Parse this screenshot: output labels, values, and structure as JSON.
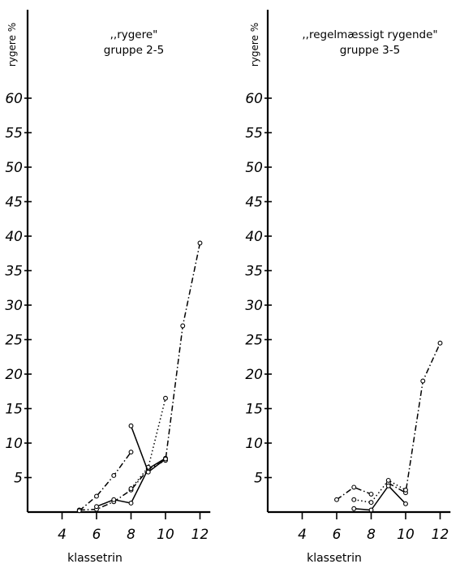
{
  "chart_data": [
    {
      "type": "line",
      "title": ",,rygere\"",
      "subtitle": "gruppe 2-5",
      "ylabel": "rygere %",
      "xlabel": "klassetrin",
      "xlim": [
        2,
        12.6
      ],
      "ylim": [
        0,
        72
      ],
      "xticks": [
        4,
        6,
        8,
        10,
        12
      ],
      "yticks": [
        5,
        10,
        15,
        20,
        25,
        30,
        35,
        40,
        45,
        50,
        55,
        60
      ],
      "grid": false,
      "series": [
        {
          "style": "dash-dot",
          "x": [
            5,
            6,
            7,
            8,
            9,
            10,
            11,
            12
          ],
          "y": [
            0.3,
            0.4,
            1.5,
            3.2,
            6.2,
            7.5,
            27,
            39
          ]
        },
        {
          "style": "solid",
          "x": [
            6,
            7,
            8,
            9,
            10
          ],
          "y": [
            0.8,
            1.8,
            1.3,
            6.3,
            7.8
          ]
        },
        {
          "style": "dash-dot",
          "x": [
            5,
            6,
            7,
            8
          ],
          "y": [
            0.2,
            2.3,
            5.3,
            8.7
          ]
        },
        {
          "style": "dotted",
          "x": [
            8,
            9,
            10
          ],
          "y": [
            3.4,
            6.5,
            16.5
          ]
        },
        {
          "style": "solid",
          "x": [
            8,
            9,
            10
          ],
          "y": [
            12.5,
            5.8,
            7.7
          ]
        }
      ]
    },
    {
      "type": "line",
      "title": ",,regelmæssigt rygende\"",
      "subtitle": "gruppe 3-5",
      "ylabel": "rygere %",
      "xlabel": "klassetrin",
      "xlim": [
        2,
        12.6
      ],
      "ylim": [
        0,
        72
      ],
      "xticks": [
        4,
        6,
        8,
        10,
        12
      ],
      "yticks": [
        5,
        10,
        15,
        20,
        25,
        30,
        35,
        40,
        45,
        50,
        55,
        60
      ],
      "grid": false,
      "series": [
        {
          "style": "dash-dot",
          "x": [
            6,
            7,
            8
          ],
          "y": [
            1.8,
            3.6,
            2.6
          ]
        },
        {
          "style": "dash-dot",
          "x": [
            9,
            10,
            11,
            12
          ],
          "y": [
            4.2,
            2.8,
            19,
            24.5
          ]
        },
        {
          "style": "dotted",
          "x": [
            7,
            8,
            9,
            10
          ],
          "y": [
            1.8,
            1.4,
            4.6,
            3.2
          ]
        },
        {
          "style": "solid",
          "x": [
            7,
            8,
            9,
            10
          ],
          "y": [
            0.5,
            0.3,
            3.8,
            1.2
          ]
        }
      ]
    }
  ]
}
